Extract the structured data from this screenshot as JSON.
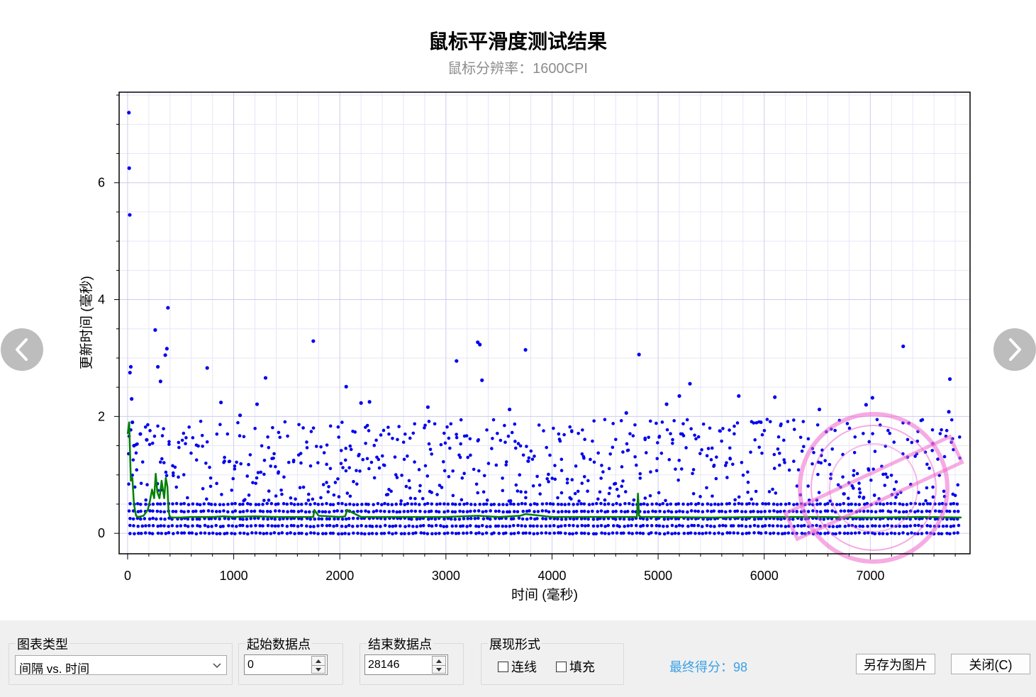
{
  "chart": {
    "title": "鼠标平滑度测试结果",
    "subtitle": "鼠标分辨率：1600CPI",
    "xlabel": "时间 (毫秒)",
    "ylabel": "更新时间 (毫秒)",
    "x_ticks": [
      "0",
      "1000",
      "2000",
      "3000",
      "4000",
      "5000",
      "6000",
      "7000"
    ],
    "y_ticks": [
      "0",
      "2",
      "4",
      "6"
    ],
    "colors": {
      "points": "#0000ee",
      "line": "#008000",
      "grid": "#ccccf0",
      "stamp": "#ee66cc"
    }
  },
  "chart_data": {
    "type": "scatter",
    "title": "鼠标平滑度测试结果",
    "subtitle": "鼠标分辨率：1600CPI",
    "xlabel": "时间 (毫秒)",
    "ylabel": "更新时间 (毫秒)",
    "xlim": [
      -80,
      7940
    ],
    "ylim": [
      -0.35,
      7.55
    ],
    "grid": true,
    "series": [
      {
        "type": "scatter",
        "x": [
          12,
          15,
          20,
          22,
          30,
          38,
          45,
          60,
          120,
          180,
          260,
          285,
          310,
          355,
          370,
          380,
          750,
          880,
          1060,
          1220,
          1300,
          1750,
          2060,
          2200,
          2280,
          2830,
          3100,
          3300,
          3320,
          3340,
          3600,
          3750,
          4700,
          4820,
          5080,
          5200,
          5300,
          5760,
          6100,
          6520,
          6960,
          7020,
          7310,
          7740,
          7750
        ],
        "y": [
          7.2,
          6.25,
          5.45,
          2.75,
          2.85,
          2.3,
          1.9,
          1.5,
          1.7,
          1.6,
          3.48,
          2.85,
          2.6,
          3.05,
          3.16,
          3.86,
          2.83,
          2.24,
          2.02,
          2.21,
          2.66,
          3.29,
          2.51,
          2.23,
          2.25,
          2.16,
          2.95,
          3.27,
          3.23,
          2.62,
          2.12,
          3.14,
          2.06,
          3.06,
          2.21,
          2.35,
          2.56,
          2.35,
          2.33,
          2.12,
          2.2,
          2.32,
          3.2,
          2.08,
          2.64
        ]
      },
      {
        "type": "line",
        "x": [
          0,
          15,
          30,
          45,
          60,
          80,
          100,
          150,
          190,
          210,
          230,
          250,
          265,
          280,
          300,
          320,
          345,
          360,
          375,
          385,
          395,
          410,
          500,
          600,
          700,
          800,
          900,
          1000,
          1200,
          1400,
          1600,
          1750,
          1760,
          1800,
          2000,
          2050,
          2070,
          2200,
          2500,
          3000,
          3300,
          3500,
          3700,
          3750,
          4000,
          4500,
          4800,
          4810,
          4820,
          4840,
          5000,
          5500,
          6000,
          6500,
          7000,
          7500,
          7860
        ],
        "y": [
          1.7,
          1.9,
          0.9,
          0.95,
          0.5,
          0.3,
          0.28,
          0.3,
          0.4,
          0.55,
          0.75,
          0.6,
          1.02,
          0.7,
          0.6,
          0.9,
          0.6,
          0.95,
          0.8,
          0.4,
          0.3,
          0.27,
          0.27,
          0.28,
          0.28,
          0.28,
          0.29,
          0.28,
          0.29,
          0.28,
          0.28,
          0.28,
          0.4,
          0.3,
          0.28,
          0.29,
          0.4,
          0.28,
          0.28,
          0.28,
          0.3,
          0.28,
          0.3,
          0.33,
          0.28,
          0.28,
          0.28,
          0.68,
          0.3,
          0.28,
          0.28,
          0.27,
          0.28,
          0.28,
          0.27,
          0.28,
          0.27
        ]
      }
    ]
  },
  "navigation": {
    "prev_icon": "chevron-left-icon",
    "next_icon": "chevron-right-icon"
  },
  "controls": {
    "chart_type_label": "图表类型",
    "chart_type_value": "间隔 vs. 时间",
    "start_label": "起始数据点",
    "start_value": "0",
    "end_label": "结束数据点",
    "end_value": "28146",
    "display_label": "展现形式",
    "connect_label": "连线",
    "fill_label": "填充",
    "connect_checked": false,
    "fill_checked": false,
    "score_text": "最终得分：98",
    "save_label": "另存为图片",
    "close_label": "关闭(C)"
  }
}
